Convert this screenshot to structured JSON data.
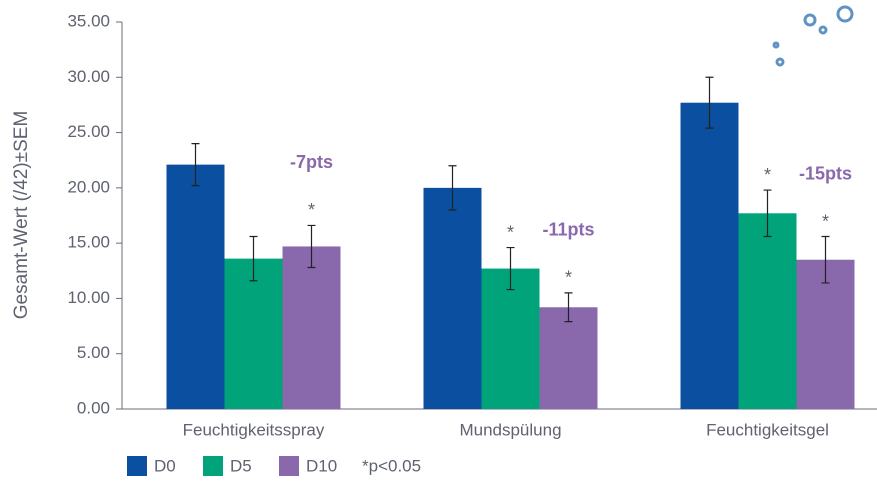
{
  "chart_data": {
    "type": "bar",
    "y_label": "Gesamt-Wert (/42)±SEM",
    "categories": [
      "Feuchtigkeitsspray",
      "Mundspülung",
      "Feuchtigkeitsgel"
    ],
    "series": [
      {
        "name": "D0",
        "color": "#0b4fa1",
        "values": [
          22.1,
          20.0,
          27.7
        ],
        "errors": [
          1.9,
          2.0,
          2.3
        ],
        "significance": [
          null,
          null,
          null
        ]
      },
      {
        "name": "D5",
        "color": "#00a37a",
        "values": [
          13.6,
          12.7,
          17.7
        ],
        "errors": [
          2.0,
          1.9,
          2.1
        ],
        "significance": [
          null,
          "*",
          "*"
        ]
      },
      {
        "name": "D10",
        "color": "#8a68ac",
        "values": [
          14.7,
          9.2,
          13.5
        ],
        "errors": [
          1.9,
          1.3,
          2.1
        ],
        "significance": [
          "*",
          "*",
          "*"
        ]
      }
    ],
    "annotations": [
      "-7pts",
      "-11pts",
      "-15pts"
    ],
    "footnote": "*p<0.05",
    "ylim": [
      0,
      35
    ],
    "yticks": [
      {
        "value": 0,
        "label": "0.00"
      },
      {
        "value": 5,
        "label": "5.00"
      },
      {
        "value": 10,
        "label": "10.00"
      },
      {
        "value": 15,
        "label": "15.00"
      },
      {
        "value": 20,
        "label": "20.00"
      },
      {
        "value": 25,
        "label": "25.00"
      },
      {
        "value": 30,
        "label": "30.00"
      },
      {
        "value": 35,
        "label": "35.00"
      }
    ],
    "grid": false
  }
}
